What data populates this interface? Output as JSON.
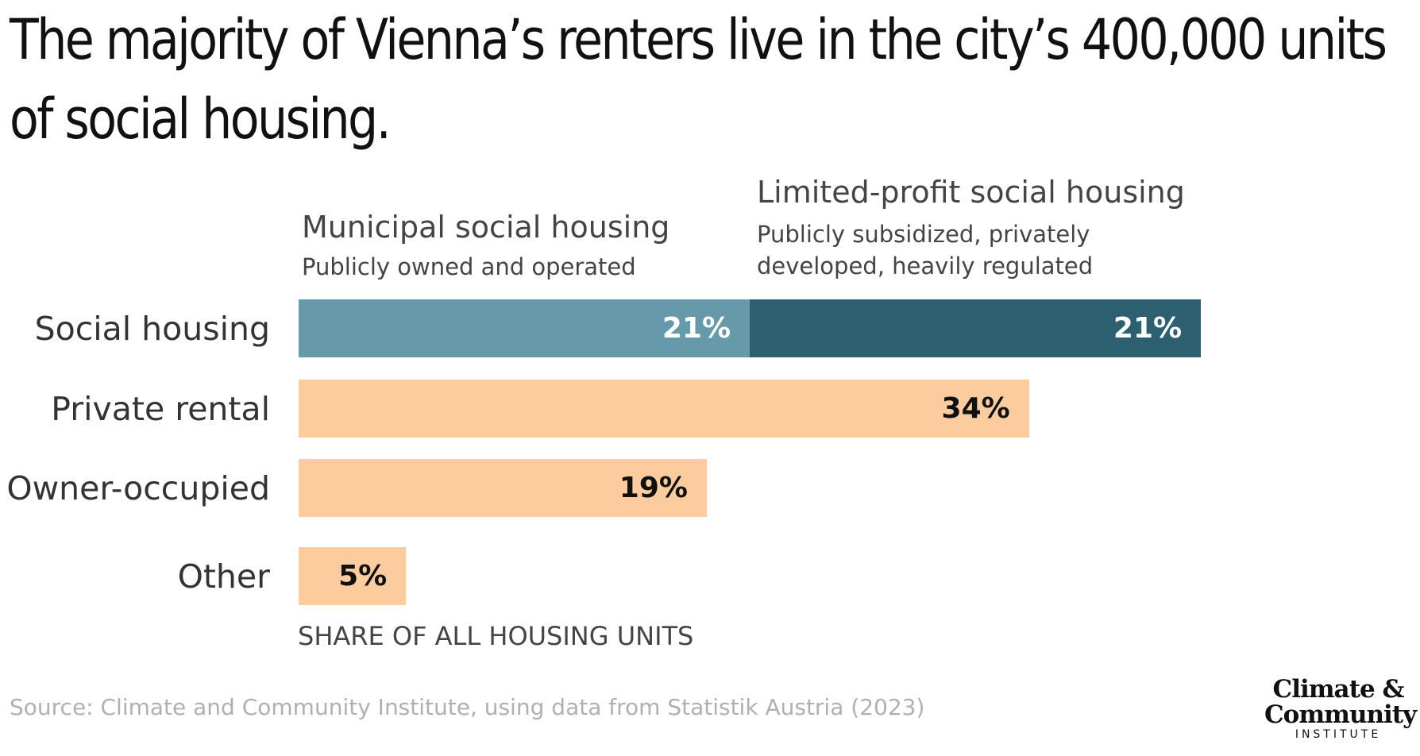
{
  "title": "The majority of Vienna’s renters live in the city’s 400,000 units of social housing.",
  "annotations": {
    "municipal": {
      "heading": "Municipal social housing",
      "sub": "Publicly owned and operated"
    },
    "limited": {
      "heading": "Limited-profit social housing",
      "sub": "Publicly subsidized, privately developed, heavily regulated"
    }
  },
  "axis_label": "SHARE OF ALL HOUSING UNITS",
  "source": "Source: Climate and Community Institute, using data from Statistik Austria (2023)",
  "logo": {
    "line1": "Climate &",
    "line2": "Community",
    "line3": "INSTITUTE"
  },
  "colors": {
    "municipal": "#6699aa",
    "limited": "#2c6070",
    "other": "#fdcc9e"
  },
  "chart_data": {
    "type": "bar",
    "orientation": "horizontal",
    "stacked": true,
    "categories": [
      "Social housing",
      "Private rental",
      "Owner-occupied",
      "Other"
    ],
    "series": [
      {
        "name": "Municipal social housing",
        "values": [
          21,
          null,
          null,
          null
        ]
      },
      {
        "name": "Limited-profit social housing",
        "values": [
          21,
          null,
          null,
          null
        ]
      },
      {
        "values": [
          null,
          34,
          19,
          5
        ]
      }
    ],
    "value_labels": [
      [
        "21%",
        "21%"
      ],
      [
        "34%"
      ],
      [
        "19%"
      ],
      [
        "5%"
      ]
    ],
    "xlabel": "SHARE OF ALL HOUSING UNITS",
    "grid": false
  }
}
